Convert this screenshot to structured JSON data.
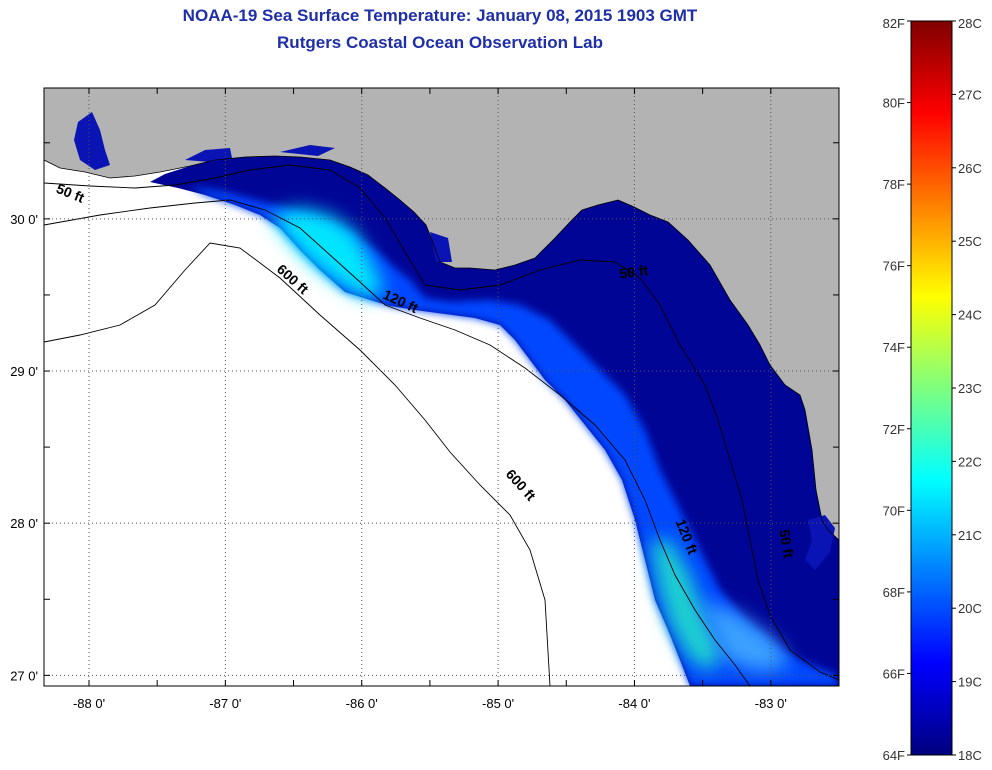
{
  "header": {
    "title": "NOAA-19 Sea Surface Temperature:  January 08, 2015 1903 GMT",
    "subtitle": "Rutgers Coastal Ocean Observation Lab"
  },
  "map": {
    "lon_range": [
      -88.33,
      -82.5
    ],
    "lat_range": [
      26.93,
      30.86
    ],
    "lon_ticks": [
      {
        "value": -88,
        "label": "-88 0'"
      },
      {
        "value": -87,
        "label": "-87 0'"
      },
      {
        "value": -86,
        "label": "-86 0'"
      },
      {
        "value": -85,
        "label": "-85 0'"
      },
      {
        "value": -84,
        "label": "-84 0'"
      },
      {
        "value": -83,
        "label": "-83 0'"
      }
    ],
    "lat_ticks": [
      {
        "value": 30,
        "label": "30 0'"
      },
      {
        "value": 29,
        "label": "29 0'"
      },
      {
        "value": 28,
        "label": "28 0'"
      },
      {
        "value": 27,
        "label": "27 0'"
      }
    ],
    "isobath_labels": [
      {
        "text": "50 ft",
        "lon": -88.15,
        "lat": 30.14,
        "rot": 22
      },
      {
        "text": "600 ft",
        "lon": -86.53,
        "lat": 29.58,
        "rot": 42
      },
      {
        "text": "120 ft",
        "lon": -85.73,
        "lat": 29.43,
        "rot": 25
      },
      {
        "text": "50 ft",
        "lon": -84.0,
        "lat": 29.62,
        "rot": -8
      },
      {
        "text": "600 ft",
        "lon": -84.86,
        "lat": 28.23,
        "rot": 48
      },
      {
        "text": "120 ft",
        "lon": -83.65,
        "lat": 27.9,
        "rot": 68
      },
      {
        "text": "50 ft",
        "lon": -82.92,
        "lat": 27.86,
        "rot": 80
      }
    ],
    "colors": {
      "land": "#b3b3b3",
      "no_data": "#ffffff",
      "frame": "#000000",
      "grid": "#555555"
    }
  },
  "colorbar": {
    "f_labels": [
      "82F",
      "80F",
      "78F",
      "76F",
      "74F",
      "72F",
      "70F",
      "68F",
      "66F",
      "64F"
    ],
    "c_labels": [
      "28C",
      "27C",
      "26C",
      "25C",
      "24C",
      "23C",
      "22C",
      "21C",
      "20C",
      "19C",
      "18C"
    ],
    "f_range": [
      64,
      82
    ],
    "c_range": [
      18,
      28
    ],
    "gradient": [
      "#00007f",
      "#0000ff",
      "#007fff",
      "#00ffff",
      "#7fff7f",
      "#ffff00",
      "#ff7f00",
      "#ff0000",
      "#7f0000"
    ]
  }
}
